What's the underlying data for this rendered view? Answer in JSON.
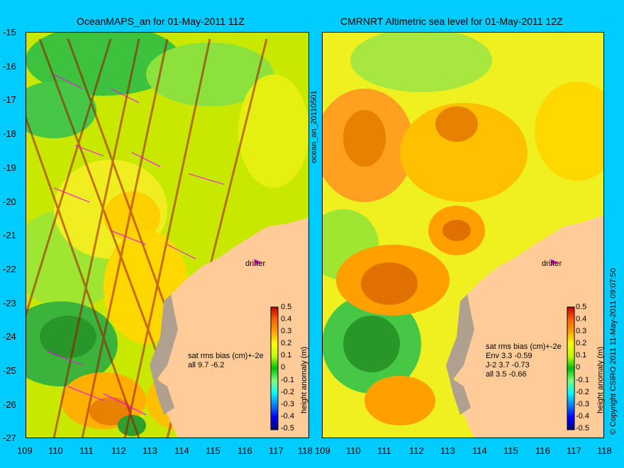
{
  "left_panel": {
    "title": "OceanMAPS_an for 01-May-2011 11Z",
    "stats_header": "sat rms bias (cm)+-2e",
    "stats_lines": [
      "all 9.7 -6.2"
    ],
    "drifter_label": "drifter",
    "colorbar_label": "height anomaly (m)",
    "side_label": "ocean_an_20110501"
  },
  "right_panel": {
    "title": "CMRNRT Altimetric sea level  for 01-May-2011 12Z",
    "stats_header": "sat rms bias (cm)+-2e",
    "stats_lines": [
      "Env     3.3 -0.59",
      "J-2    3.7 -0.73",
      "all 3.5 -0.66"
    ],
    "drifter_label": "drifter",
    "colorbar_label": "height anomaly (m)",
    "copyright": "© Copyright CSIRO 2011   11-May-2011 09:07:50"
  },
  "axes": {
    "lat_ticks": [
      "-15",
      "-16",
      "-17",
      "-18",
      "-19",
      "-20",
      "-21",
      "-22",
      "-23",
      "-24",
      "-25",
      "-26",
      "-27"
    ],
    "lon_ticks": [
      "109",
      "110",
      "111",
      "112",
      "113",
      "114",
      "115",
      "116",
      "117",
      "118"
    ]
  },
  "colorbar": {
    "ticks": [
      "0.5",
      "0.4",
      "0.3",
      "0.2",
      "0.1",
      "0",
      "-0.1",
      "-0.2",
      "-0.3",
      "-0.4",
      "-0.5"
    ],
    "colors": [
      "#00007f",
      "#0000ff",
      "#0080ff",
      "#00ffff",
      "#80ff80",
      "#00c000",
      "#c0ff00",
      "#ffff00",
      "#ffa000",
      "#ff6000",
      "#c00000"
    ]
  },
  "colors": {
    "land": "#ffcc99",
    "shelf": "#b0a090",
    "background": "#00ccff",
    "contour": "#00cccc",
    "vector": "#ff00ff"
  }
}
